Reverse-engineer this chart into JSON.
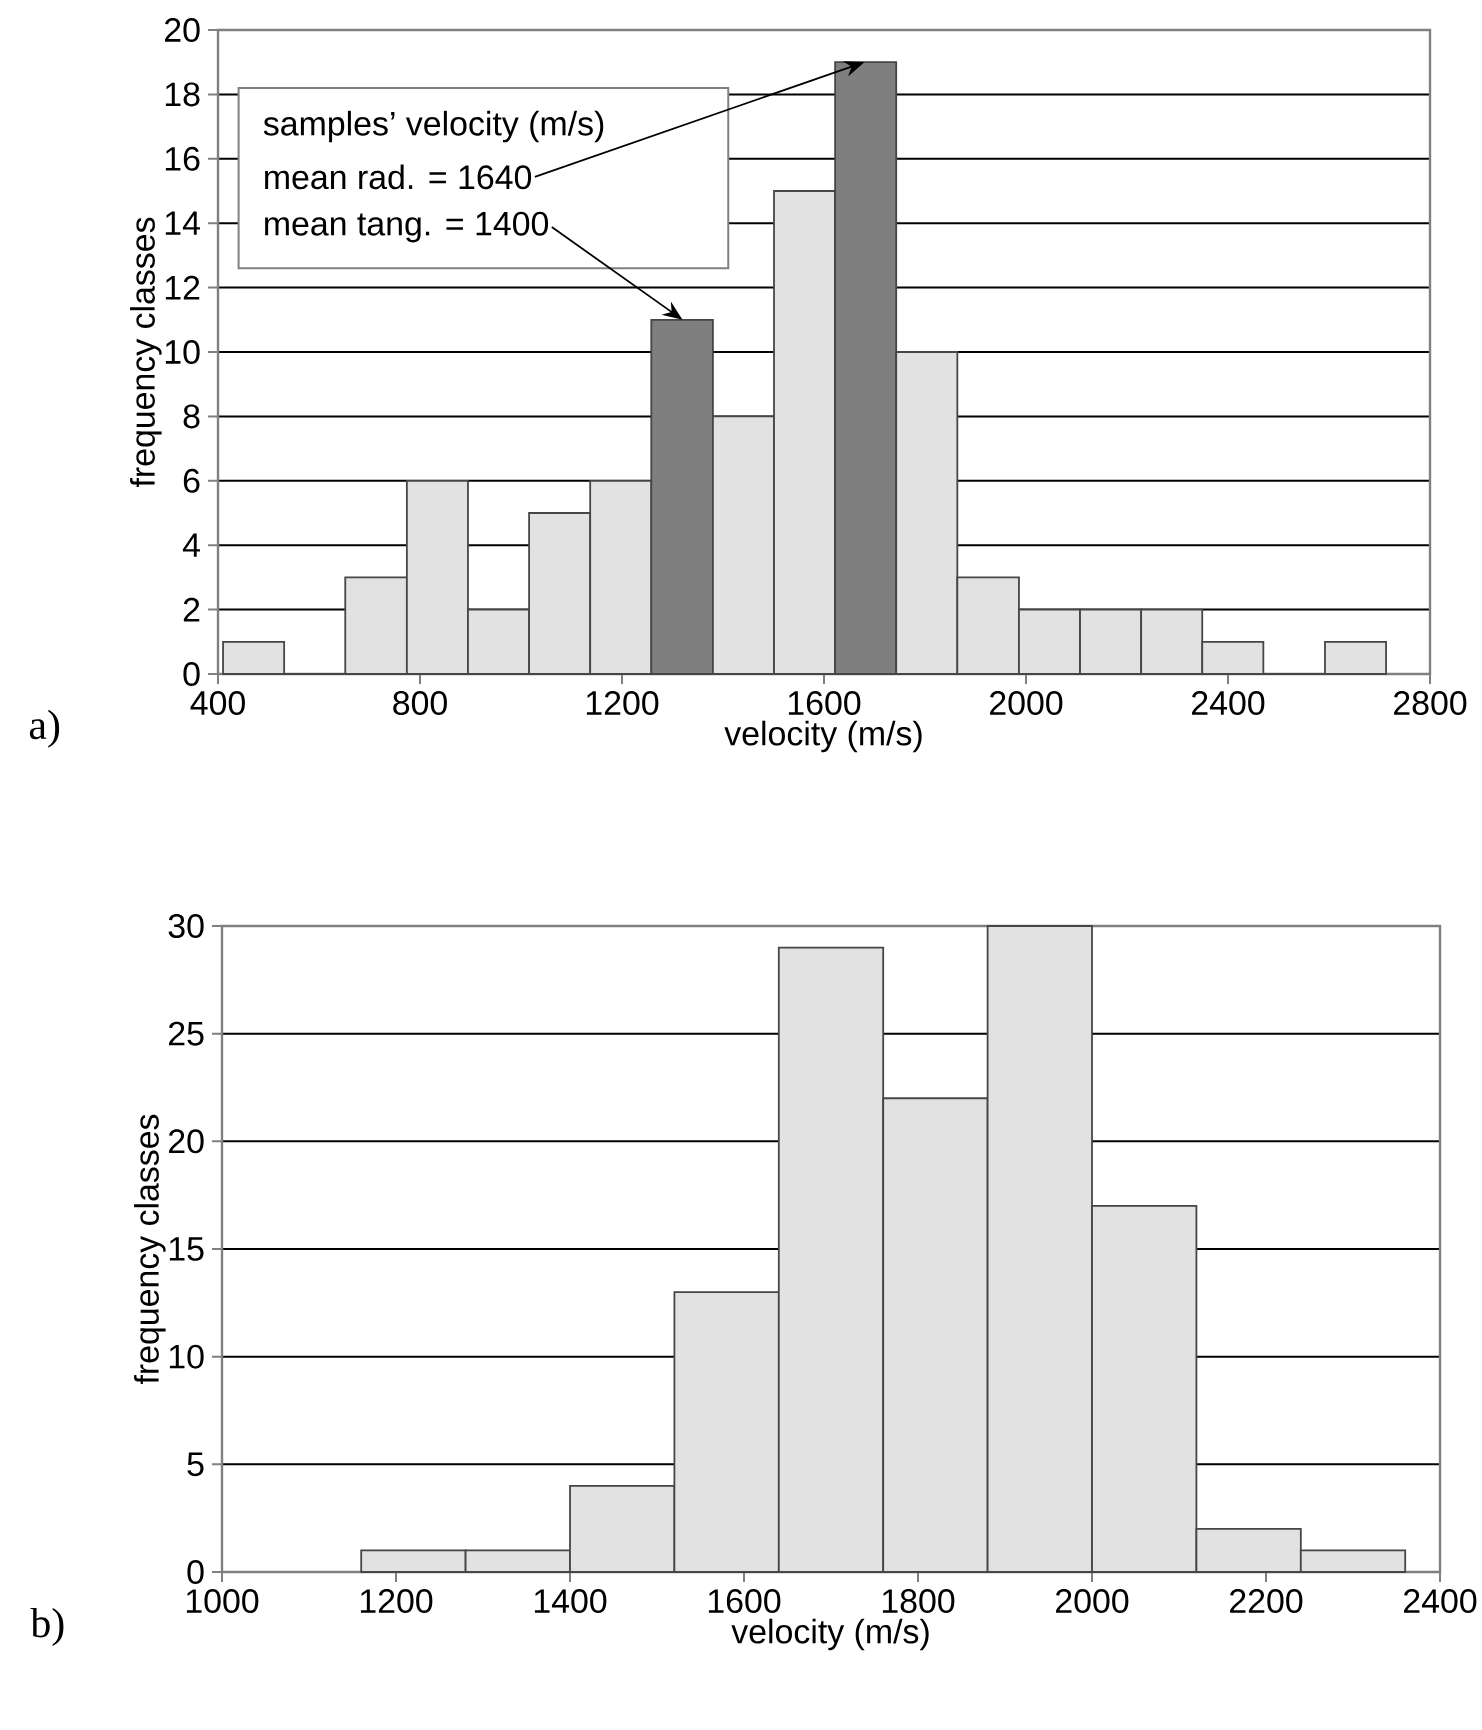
{
  "chart_data": [
    {
      "type": "histogram",
      "xlabel": "velocity (m/s)",
      "ylabel": "frequency classes",
      "bins": [
        410,
        531,
        652,
        774,
        895,
        1016,
        1137,
        1258,
        1380,
        1501,
        1622,
        1743,
        1864,
        1986,
        2107,
        2228,
        2349,
        2470,
        2592,
        2713
      ],
      "values": [
        1,
        0,
        3,
        6,
        2,
        5,
        6,
        11,
        8,
        15,
        19,
        10,
        3,
        2,
        2,
        2,
        1,
        0,
        1
      ],
      "colors": [
        "#e2e2e2",
        "#e2e2e2",
        "#e2e2e2",
        "#e2e2e2",
        "#e2e2e2",
        "#e2e2e2",
        "#e2e2e2",
        "#7f7f7f",
        "#e2e2e2",
        "#e2e2e2",
        "#7f7f7f",
        "#e2e2e2",
        "#e2e2e2",
        "#e2e2e2",
        "#e2e2e2",
        "#e2e2e2",
        "#e2e2e2",
        "#e2e2e2",
        "#e2e2e2"
      ],
      "xlim": [
        400,
        2800
      ],
      "xticks": [
        400,
        800,
        1200,
        1600,
        2000,
        2400,
        2800
      ],
      "ylim": [
        0,
        20
      ],
      "yticks": [
        0,
        2,
        4,
        6,
        8,
        10,
        12,
        14,
        16,
        18,
        20
      ],
      "grid": "y",
      "annotations": [
        "samples’ velocity (m/s)",
        {
          "text": "mean rad.   = 1640",
          "x": 1680,
          "y": 19
        },
        {
          "text": "mean tang. = 1400",
          "x": 1320,
          "y": 11
        },
        "a)"
      ]
    },
    {
      "type": "histogram",
      "xlabel": "velocity (m/s)",
      "ylabel": "frequency classes",
      "bins": [
        1160,
        1280,
        1400,
        1520,
        1640,
        1760,
        1880,
        2000,
        2120,
        2240,
        2360
      ],
      "values": [
        1,
        1,
        4,
        13,
        29,
        22,
        30,
        17,
        2,
        1
      ],
      "color": "#e2e2e2",
      "xlim": [
        1000,
        2400
      ],
      "xticks": [
        1000,
        1200,
        1400,
        1600,
        1800,
        2000,
        2200,
        2400
      ],
      "ylim": [
        0,
        30
      ],
      "yticks": [
        0,
        5,
        10,
        15,
        20,
        25,
        30
      ],
      "grid": "y",
      "annotations": [
        "b)"
      ]
    }
  ]
}
